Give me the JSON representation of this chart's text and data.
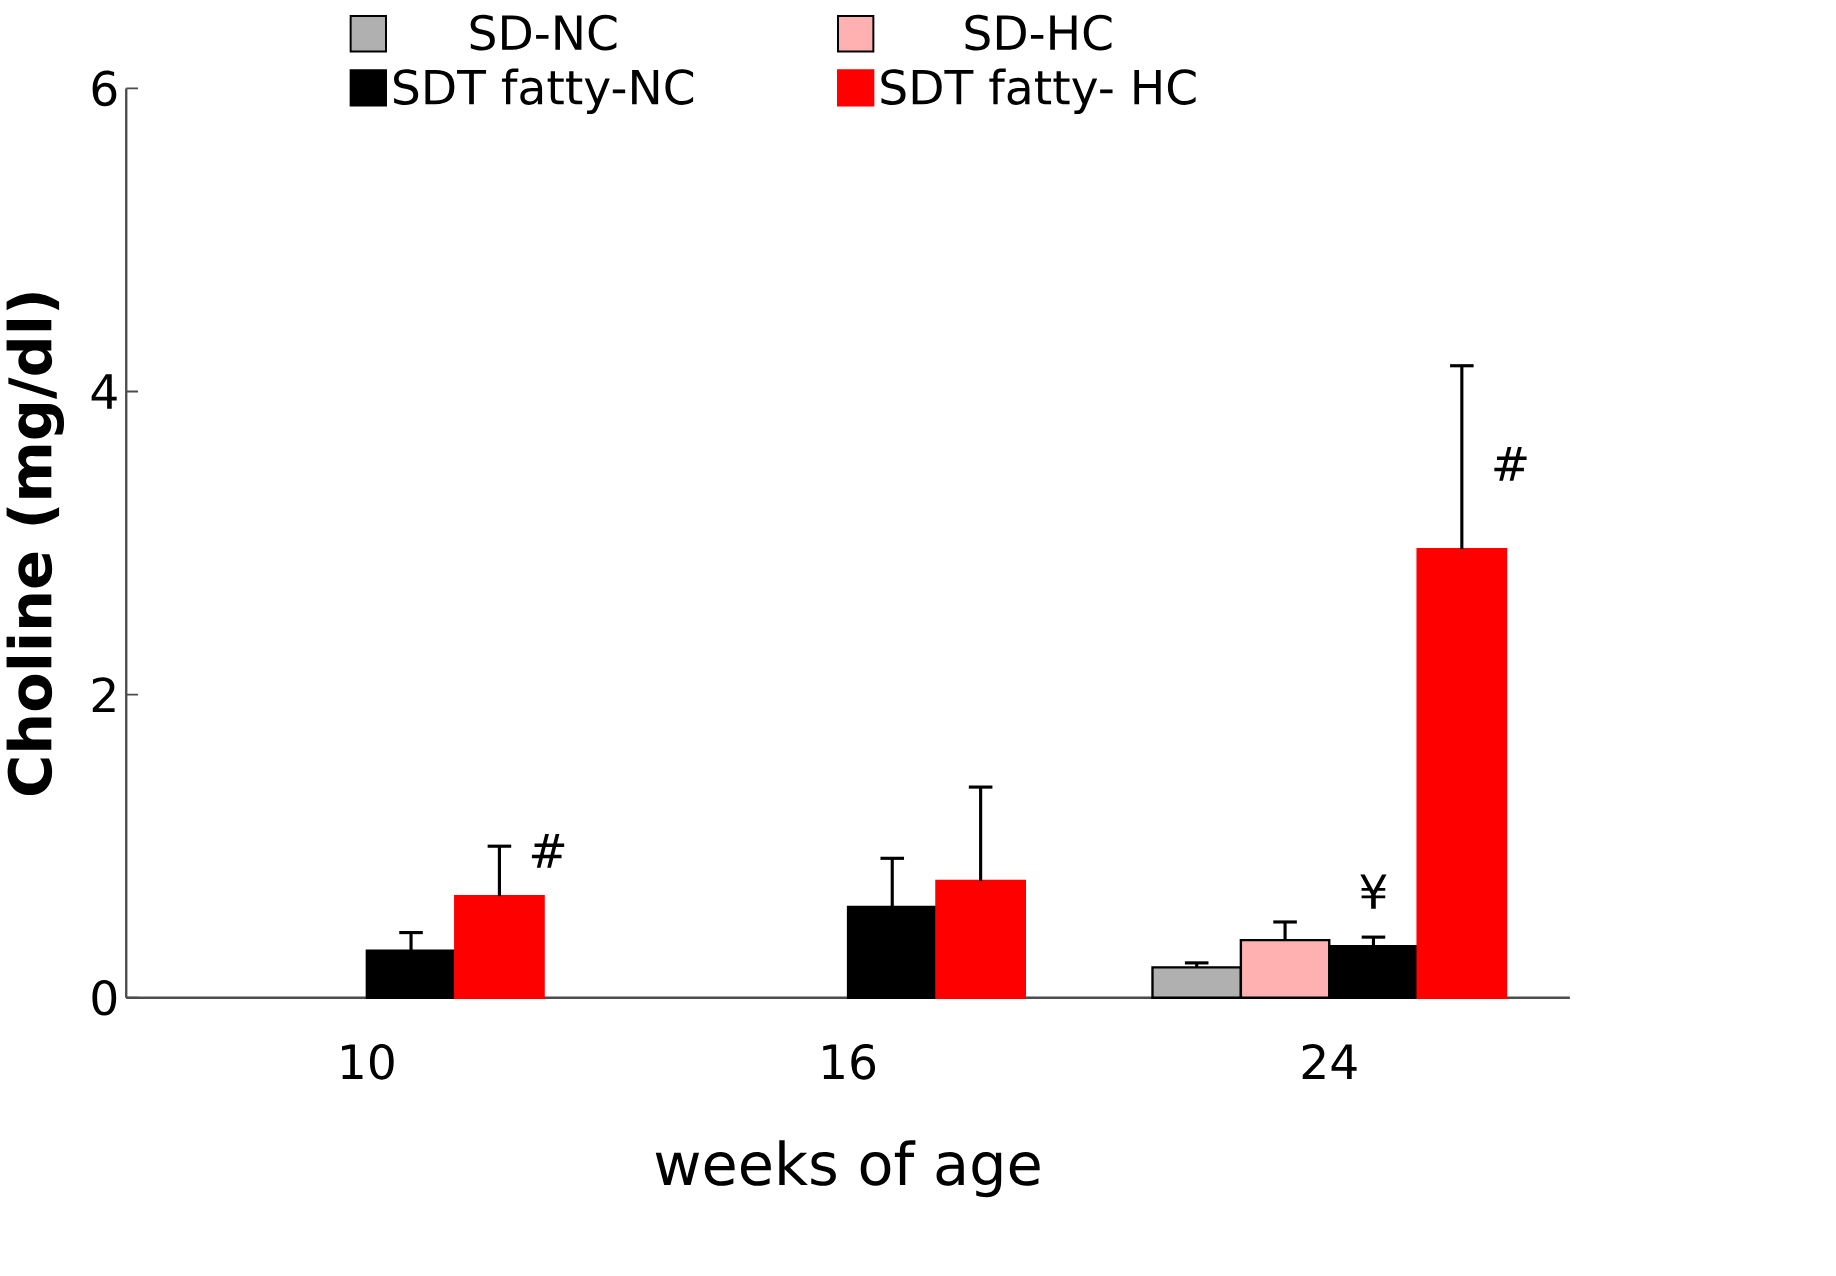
{
  "chart_data": {
    "type": "bar",
    "xlabel": "weeks of age",
    "ylabel": "Choline (mg/dl)",
    "categories": [
      "10",
      "16",
      "24"
    ],
    "series": [
      {
        "name": "SD-NC",
        "color": "#b0b0b0",
        "values": [
          null,
          null,
          0.2
        ],
        "errors": [
          null,
          null,
          [
            0.2,
            0.23
          ]
        ]
      },
      {
        "name": "SD-HC",
        "color": "#ffb0b0",
        "values": [
          null,
          null,
          0.38
        ],
        "errors": [
          null,
          null,
          [
            0.38,
            0.5
          ]
        ]
      },
      {
        "name": "SDT fatty-NC",
        "color": "#000000",
        "values": [
          0.31,
          0.6,
          0.34
        ],
        "errors": [
          [
            0.31,
            0.43
          ],
          [
            0.6,
            0.92
          ],
          [
            0.34,
            0.4
          ]
        ]
      },
      {
        "name": "SDT fatty- HC",
        "color": "#ff0000",
        "values": [
          0.67,
          0.77,
          2.96
        ],
        "errors": [
          [
            0.67,
            1.0
          ],
          [
            0.77,
            1.39
          ],
          [
            2.96,
            4.17
          ]
        ]
      }
    ],
    "ylim": [
      0,
      6
    ],
    "yticks": [
      0,
      2,
      4,
      6
    ],
    "grid": false,
    "legend": "top",
    "annotations": [
      "#",
      "#",
      {
        "text": "¥",
        "x": "24",
        "y": 0.34
      }
    ]
  }
}
